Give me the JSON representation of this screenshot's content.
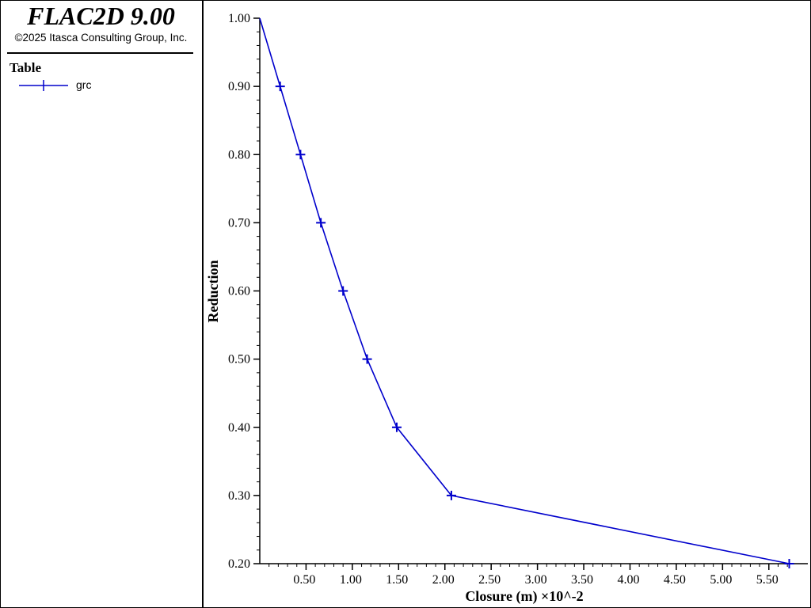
{
  "sidebar": {
    "app_title": "FLAC2D 9.00",
    "copyright": "©2025 Itasca Consulting Group, Inc.",
    "legend_title": "Table",
    "legend_items": [
      {
        "label": "grc",
        "icon": "line-plus-marker-icon"
      }
    ]
  },
  "colors": {
    "series": "#0000cc",
    "axis": "#000000",
    "background": "#ffffff"
  },
  "chart_data": {
    "type": "line",
    "title": "",
    "xlabel": "Closure (m) ×10^-2",
    "ylabel": "Reduction",
    "xlim": [
      0.0,
      5.75
    ],
    "ylim": [
      0.2,
      1.0
    ],
    "xticks": [
      0.5,
      1.0,
      1.5,
      2.0,
      2.5,
      3.0,
      3.5,
      4.0,
      4.5,
      5.0,
      5.5
    ],
    "xtick_labels": [
      "0.50",
      "1.00",
      "1.50",
      "2.00",
      "2.50",
      "3.00",
      "3.50",
      "4.00",
      "4.50",
      "5.00",
      "5.50"
    ],
    "yticks": [
      0.2,
      0.3,
      0.4,
      0.5,
      0.6,
      0.7,
      0.8,
      0.9,
      1.0
    ],
    "ytick_labels": [
      "0.20",
      "0.30",
      "0.40",
      "0.50",
      "0.60",
      "0.70",
      "0.80",
      "0.90",
      "1.00"
    ],
    "grid": false,
    "legend": "sidebar",
    "series": [
      {
        "name": "grc",
        "marker": "plus",
        "x": [
          0.0,
          0.22,
          0.44,
          0.66,
          0.9,
          1.16,
          1.48,
          2.07,
          5.72
        ],
        "y": [
          1.0,
          0.9,
          0.8,
          0.7,
          0.6,
          0.5,
          0.4,
          0.3,
          0.2
        ]
      }
    ]
  }
}
